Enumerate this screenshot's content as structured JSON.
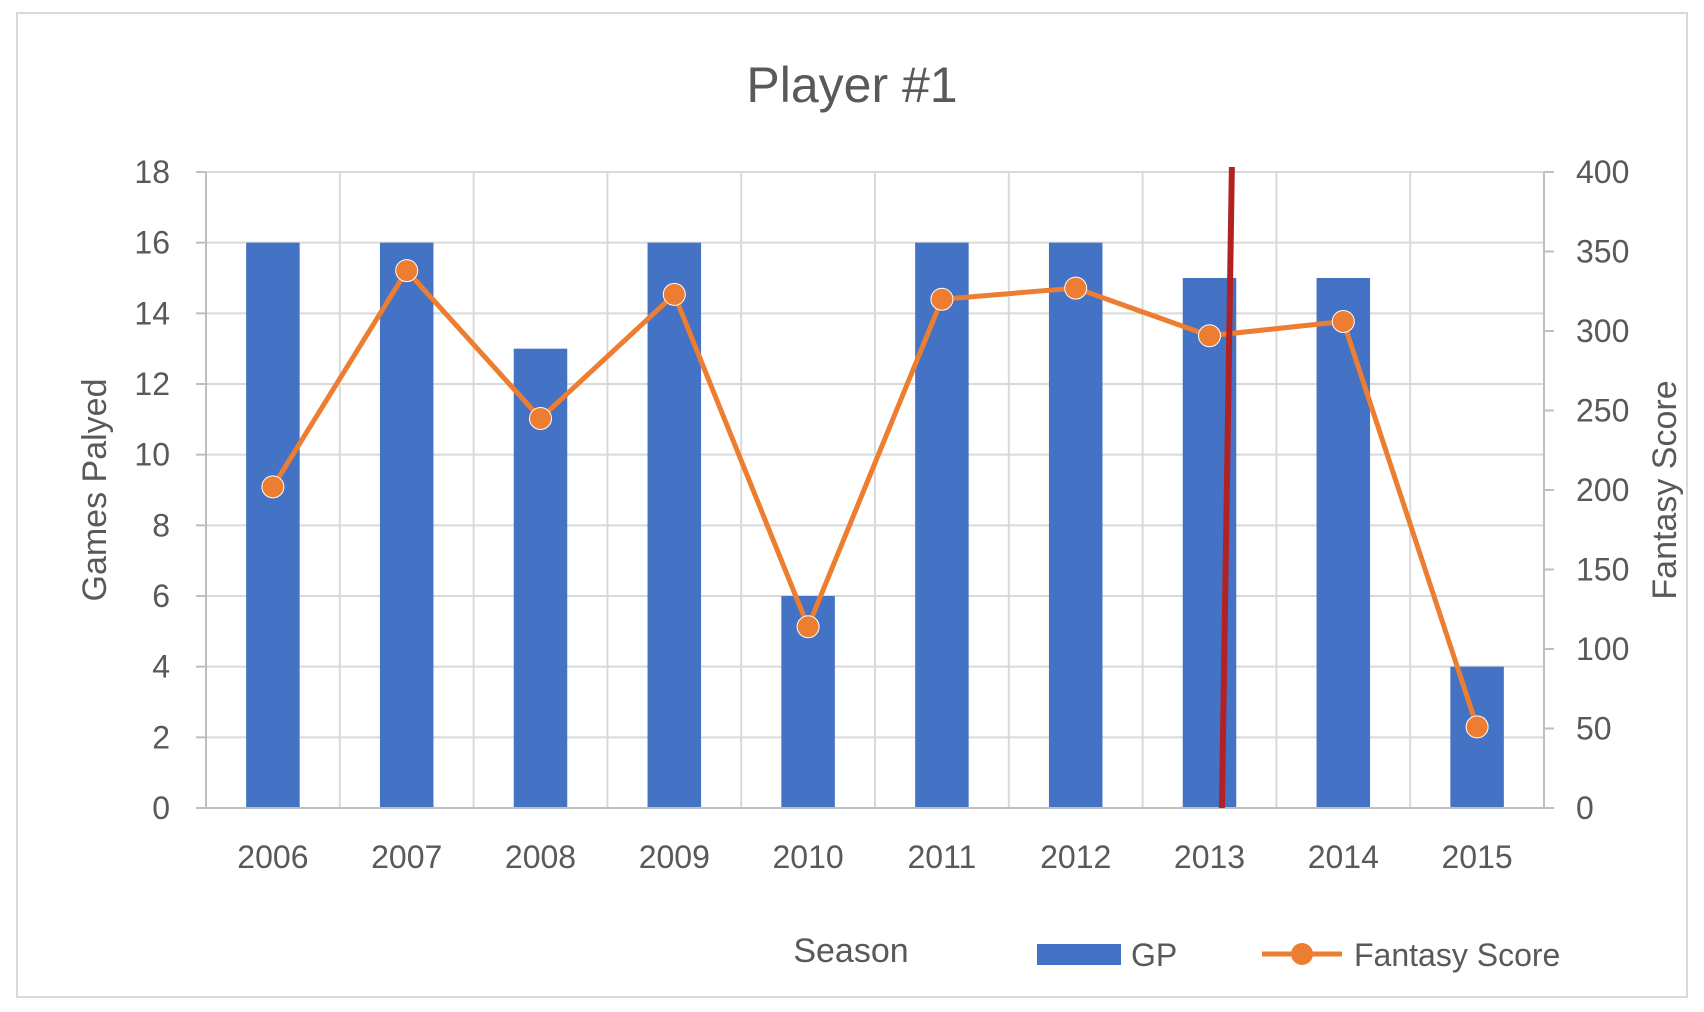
{
  "chart_data": {
    "type": "bar",
    "title": "Player #1",
    "xlabel": "Season",
    "ylabel": "Games Palyed",
    "y2label": "Fantasy Score",
    "categories": [
      "2006",
      "2007",
      "2008",
      "2009",
      "2010",
      "2011",
      "2012",
      "2013",
      "2014",
      "2015"
    ],
    "ylim": [
      0,
      18
    ],
    "y2lim": [
      0,
      400
    ],
    "yticks": [
      "0",
      "2",
      "4",
      "6",
      "8",
      "10",
      "12",
      "14",
      "16",
      "18"
    ],
    "y2ticks": [
      "0",
      "50",
      "100",
      "150",
      "200",
      "250",
      "300",
      "350",
      "400"
    ],
    "grid": true,
    "legend_position": "bottom",
    "series": [
      {
        "name": "GP",
        "type": "bar",
        "axis": "left",
        "color": "#4472C4",
        "values": [
          16,
          16,
          13,
          16,
          6,
          16,
          16,
          15,
          15,
          4
        ]
      },
      {
        "name": "Fantasy Score",
        "type": "line",
        "axis": "right",
        "color": "#ED7D31",
        "marker": "circle",
        "values": [
          202,
          338,
          245,
          323,
          114,
          320,
          327,
          297,
          306,
          51
        ]
      }
    ],
    "annotations": [
      {
        "type": "vertical-line",
        "color": "#B22222",
        "x_category": "2013",
        "x_offset_from_category": 0.1
      }
    ]
  }
}
